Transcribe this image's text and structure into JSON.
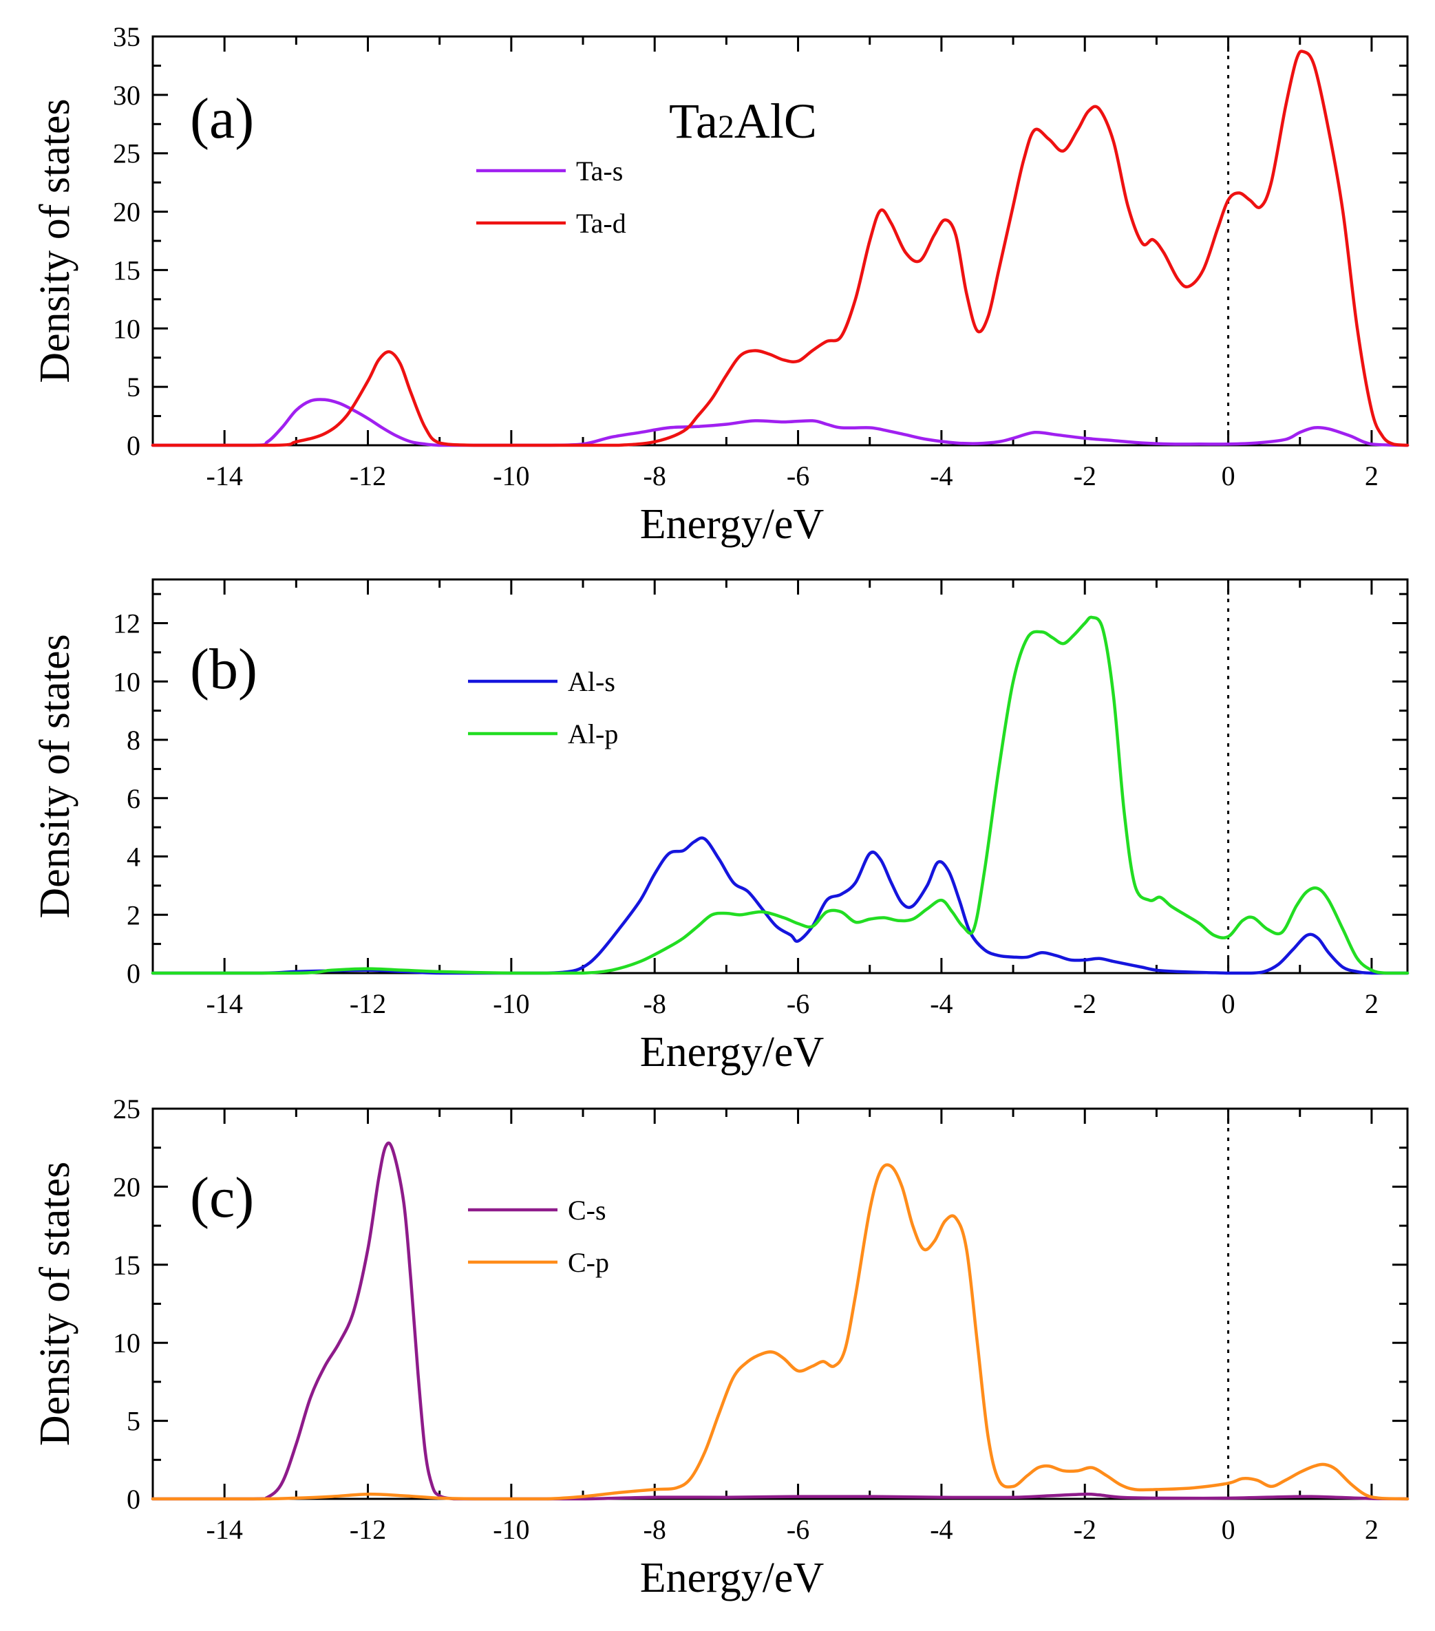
{
  "figure": {
    "compound_main": "Ta",
    "compound_sub": "2",
    "compound_rest": "AlC"
  },
  "chart_data": [
    {
      "type": "line",
      "panel_label": "(a)",
      "xlabel": "Energy/eV",
      "ylabel": "Density of states",
      "xlim": [
        -15,
        2.5
      ],
      "ylim": [
        0,
        35
      ],
      "xticks": [
        -14,
        -12,
        -10,
        -8,
        -6,
        -4,
        -2,
        0,
        2
      ],
      "yticks": [
        0,
        5,
        10,
        15,
        20,
        25,
        30,
        35
      ],
      "fermi_level": 0,
      "series": [
        {
          "name": "Ta-s",
          "color": "#a020f0",
          "x": [
            -15,
            -13.6,
            -13.4,
            -13.2,
            -13.0,
            -12.8,
            -12.6,
            -12.4,
            -12.2,
            -12.0,
            -11.8,
            -11.6,
            -11.4,
            -11.2,
            -11.0,
            -10.5,
            -10,
            -9.5,
            -9.0,
            -8.6,
            -8.2,
            -7.8,
            -7.4,
            -7.0,
            -6.6,
            -6.2,
            -5.8,
            -5.6,
            -5.4,
            -5.0,
            -4.8,
            -4.5,
            -4.2,
            -3.8,
            -3.5,
            -3.2,
            -3.0,
            -2.7,
            -2.4,
            -2.0,
            -1.6,
            -1.2,
            -0.8,
            -0.4,
            0.0,
            0.4,
            0.8,
            1.0,
            1.2,
            1.4,
            1.7,
            2.0,
            2.5
          ],
          "values": [
            0,
            0,
            0.3,
            1.5,
            3.0,
            3.8,
            3.9,
            3.6,
            3.0,
            2.3,
            1.5,
            0.8,
            0.3,
            0.1,
            0,
            0,
            0,
            0,
            0.1,
            0.7,
            1.1,
            1.5,
            1.6,
            1.8,
            2.1,
            2.0,
            2.1,
            1.8,
            1.5,
            1.5,
            1.3,
            0.9,
            0.5,
            0.2,
            0.15,
            0.3,
            0.6,
            1.1,
            0.9,
            0.6,
            0.4,
            0.2,
            0.1,
            0.1,
            0.1,
            0.2,
            0.5,
            1.1,
            1.5,
            1.4,
            0.8,
            0.1,
            0
          ]
        },
        {
          "name": "Ta-d",
          "color": "#ee1111",
          "x": [
            -15,
            -13.3,
            -13.0,
            -12.6,
            -12.3,
            -12.0,
            -11.85,
            -11.7,
            -11.55,
            -11.4,
            -11.2,
            -11.0,
            -10.5,
            -10,
            -9.0,
            -8.5,
            -8.0,
            -7.6,
            -7.4,
            -7.2,
            -7.0,
            -6.8,
            -6.6,
            -6.4,
            -6.2,
            -6.0,
            -5.8,
            -5.6,
            -5.4,
            -5.2,
            -5.0,
            -4.85,
            -4.7,
            -4.5,
            -4.3,
            -4.1,
            -3.95,
            -3.8,
            -3.65,
            -3.5,
            -3.35,
            -3.2,
            -3.0,
            -2.85,
            -2.7,
            -2.5,
            -2.3,
            -2.1,
            -1.95,
            -1.8,
            -1.6,
            -1.4,
            -1.2,
            -1.05,
            -0.9,
            -0.7,
            -0.55,
            -0.35,
            -0.15,
            0.0,
            0.15,
            0.3,
            0.45,
            0.6,
            0.8,
            0.95,
            1.05,
            1.2,
            1.4,
            1.6,
            1.8,
            2.0,
            2.15,
            2.3,
            2.5
          ],
          "values": [
            0,
            0,
            0.3,
            1.0,
            2.5,
            5.5,
            7.3,
            8.0,
            7.0,
            4.5,
            1.5,
            0.2,
            0,
            0,
            0,
            0,
            0.3,
            1.2,
            2.5,
            4.0,
            6.0,
            7.7,
            8.1,
            7.8,
            7.3,
            7.2,
            8.1,
            8.9,
            9.3,
            12.5,
            17.5,
            20.1,
            19.0,
            16.5,
            15.8,
            18.0,
            19.3,
            18.0,
            13.0,
            9.8,
            11.0,
            15.0,
            20.5,
            24.5,
            27.0,
            26.2,
            25.2,
            27.0,
            28.6,
            28.8,
            26.0,
            20.5,
            17.3,
            17.6,
            16.5,
            14.2,
            13.6,
            15.0,
            18.5,
            21.0,
            21.6,
            21.0,
            20.4,
            22.5,
            29.0,
            33.0,
            33.7,
            32.5,
            27.0,
            20.0,
            10.0,
            3.0,
            0.8,
            0.1,
            0
          ]
        }
      ]
    },
    {
      "type": "line",
      "panel_label": "(b)",
      "xlabel": "Energy/eV",
      "ylabel": "Density of states",
      "xlim": [
        -15,
        2.5
      ],
      "ylim": [
        0,
        13.5
      ],
      "xticks": [
        -14,
        -12,
        -10,
        -8,
        -6,
        -4,
        -2,
        0,
        2
      ],
      "yticks": [
        0,
        2,
        4,
        6,
        8,
        10,
        12
      ],
      "fermi_level": 0,
      "series": [
        {
          "name": "Al-s",
          "color": "#1515dd",
          "x": [
            -15,
            -13.5,
            -13.0,
            -12.5,
            -12.0,
            -11.5,
            -11.0,
            -10.0,
            -9.5,
            -9.2,
            -9.0,
            -8.8,
            -8.5,
            -8.2,
            -8.0,
            -7.8,
            -7.6,
            -7.45,
            -7.3,
            -7.1,
            -6.9,
            -6.7,
            -6.5,
            -6.3,
            -6.1,
            -6.0,
            -5.8,
            -5.6,
            -5.4,
            -5.2,
            -5.0,
            -4.85,
            -4.7,
            -4.55,
            -4.4,
            -4.2,
            -4.05,
            -3.9,
            -3.75,
            -3.6,
            -3.4,
            -3.2,
            -3.0,
            -2.8,
            -2.6,
            -2.4,
            -2.2,
            -2.0,
            -1.8,
            -1.6,
            -1.4,
            -1.2,
            -1.0,
            -0.7,
            -0.3,
            0.0,
            0.3,
            0.5,
            0.7,
            0.9,
            1.1,
            1.25,
            1.4,
            1.6,
            1.8,
            2.0,
            2.5
          ],
          "values": [
            0,
            0,
            0.05,
            0.08,
            0.1,
            0.05,
            0,
            0,
            0,
            0.05,
            0.2,
            0.6,
            1.5,
            2.5,
            3.4,
            4.1,
            4.2,
            4.5,
            4.6,
            3.9,
            3.1,
            2.8,
            2.2,
            1.6,
            1.3,
            1.1,
            1.6,
            2.5,
            2.7,
            3.1,
            4.1,
            3.9,
            3.1,
            2.4,
            2.3,
            3.0,
            3.8,
            3.5,
            2.5,
            1.4,
            0.8,
            0.6,
            0.55,
            0.55,
            0.7,
            0.6,
            0.45,
            0.45,
            0.5,
            0.4,
            0.3,
            0.2,
            0.1,
            0.05,
            0.02,
            0,
            0,
            0.05,
            0.3,
            0.8,
            1.3,
            1.2,
            0.7,
            0.2,
            0.05,
            0,
            0
          ]
        },
        {
          "name": "Al-p",
          "color": "#22dd22",
          "x": [
            -15,
            -13.0,
            -12.5,
            -12.0,
            -11.5,
            -11.0,
            -10.0,
            -9.5,
            -9.0,
            -8.6,
            -8.2,
            -7.8,
            -7.6,
            -7.4,
            -7.2,
            -7.0,
            -6.8,
            -6.5,
            -6.2,
            -6.0,
            -5.8,
            -5.6,
            -5.4,
            -5.2,
            -5.0,
            -4.8,
            -4.6,
            -4.4,
            -4.2,
            -4.0,
            -3.85,
            -3.7,
            -3.55,
            -3.4,
            -3.2,
            -3.0,
            -2.8,
            -2.6,
            -2.45,
            -2.3,
            -2.15,
            -2.0,
            -1.9,
            -1.75,
            -1.6,
            -1.45,
            -1.3,
            -1.1,
            -0.95,
            -0.8,
            -0.6,
            -0.4,
            -0.2,
            0.0,
            0.2,
            0.35,
            0.55,
            0.75,
            0.95,
            1.1,
            1.25,
            1.4,
            1.6,
            1.8,
            2.0,
            2.2,
            2.5
          ],
          "values": [
            0,
            0,
            0.1,
            0.15,
            0.1,
            0.05,
            0,
            0,
            0,
            0.1,
            0.4,
            0.9,
            1.2,
            1.6,
            2.0,
            2.05,
            2.0,
            2.1,
            1.9,
            1.7,
            1.6,
            2.1,
            2.1,
            1.75,
            1.85,
            1.9,
            1.8,
            1.85,
            2.2,
            2.5,
            2.1,
            1.6,
            1.5,
            3.5,
            7.0,
            10.0,
            11.5,
            11.7,
            11.5,
            11.3,
            11.6,
            12.0,
            12.2,
            11.8,
            9.5,
            5.5,
            3.0,
            2.5,
            2.6,
            2.3,
            2.0,
            1.7,
            1.3,
            1.25,
            1.8,
            1.9,
            1.5,
            1.4,
            2.3,
            2.8,
            2.9,
            2.5,
            1.5,
            0.5,
            0.1,
            0,
            0
          ]
        }
      ]
    },
    {
      "type": "line",
      "panel_label": "(c)",
      "xlabel": "Energy/eV",
      "ylabel": "Density of states",
      "xlim": [
        -15,
        2.5
      ],
      "ylim": [
        0,
        25
      ],
      "xticks": [
        -14,
        -12,
        -10,
        -8,
        -6,
        -4,
        -2,
        0,
        2
      ],
      "yticks": [
        0,
        5,
        10,
        15,
        20,
        25
      ],
      "fermi_level": 0,
      "series": [
        {
          "name": "C-s",
          "color": "#8e1b8a",
          "x": [
            -15,
            -13.6,
            -13.4,
            -13.2,
            -13.0,
            -12.8,
            -12.6,
            -12.4,
            -12.2,
            -12.0,
            -11.85,
            -11.75,
            -11.65,
            -11.5,
            -11.4,
            -11.3,
            -11.2,
            -11.1,
            -11.0,
            -10.8,
            -10.5,
            -10,
            -9.0,
            -8.0,
            -7.0,
            -6.0,
            -5.0,
            -4.0,
            -3.0,
            -2.5,
            -2.0,
            -1.8,
            -1.5,
            -1.0,
            0.0,
            1.0,
            1.5,
            2.0,
            2.5
          ],
          "values": [
            0,
            0,
            0.1,
            1.0,
            3.5,
            6.5,
            8.5,
            10.0,
            12.0,
            16.0,
            20.5,
            22.6,
            22.3,
            19.0,
            14.0,
            8.0,
            3.0,
            0.8,
            0.2,
            0,
            0,
            0,
            0,
            0.1,
            0.1,
            0.15,
            0.15,
            0.1,
            0.1,
            0.2,
            0.3,
            0.25,
            0.1,
            0.05,
            0.05,
            0.15,
            0.1,
            0.02,
            0
          ]
        },
        {
          "name": "C-p",
          "color": "#ff8c1a",
          "x": [
            -15,
            -13.5,
            -13.0,
            -12.5,
            -12.0,
            -11.5,
            -11.0,
            -10.5,
            -10.0,
            -9.5,
            -9.0,
            -8.5,
            -8.0,
            -7.7,
            -7.5,
            -7.3,
            -7.1,
            -6.9,
            -6.7,
            -6.5,
            -6.35,
            -6.2,
            -6.0,
            -5.8,
            -5.65,
            -5.5,
            -5.35,
            -5.2,
            -5.0,
            -4.85,
            -4.7,
            -4.55,
            -4.4,
            -4.25,
            -4.1,
            -3.95,
            -3.8,
            -3.65,
            -3.5,
            -3.35,
            -3.2,
            -3.0,
            -2.8,
            -2.65,
            -2.5,
            -2.3,
            -2.1,
            -1.9,
            -1.7,
            -1.5,
            -1.3,
            -1.0,
            -0.5,
            0.0,
            0.2,
            0.4,
            0.6,
            0.8,
            1.0,
            1.2,
            1.35,
            1.5,
            1.7,
            1.9,
            2.1,
            2.5
          ],
          "values": [
            0,
            0,
            0.05,
            0.15,
            0.3,
            0.2,
            0.05,
            0,
            0,
            0,
            0.15,
            0.4,
            0.6,
            0.7,
            1.3,
            3.0,
            5.5,
            7.8,
            8.8,
            9.3,
            9.4,
            9.0,
            8.2,
            8.5,
            8.8,
            8.5,
            9.5,
            13.0,
            18.5,
            21.0,
            21.3,
            20.0,
            17.5,
            16.0,
            16.5,
            17.8,
            18.0,
            16.0,
            10.0,
            4.0,
            1.2,
            0.8,
            1.5,
            2.0,
            2.1,
            1.8,
            1.8,
            2.0,
            1.5,
            0.9,
            0.6,
            0.6,
            0.7,
            1.0,
            1.3,
            1.2,
            0.8,
            1.2,
            1.7,
            2.1,
            2.2,
            1.9,
            1.0,
            0.3,
            0.05,
            0
          ]
        }
      ]
    }
  ]
}
